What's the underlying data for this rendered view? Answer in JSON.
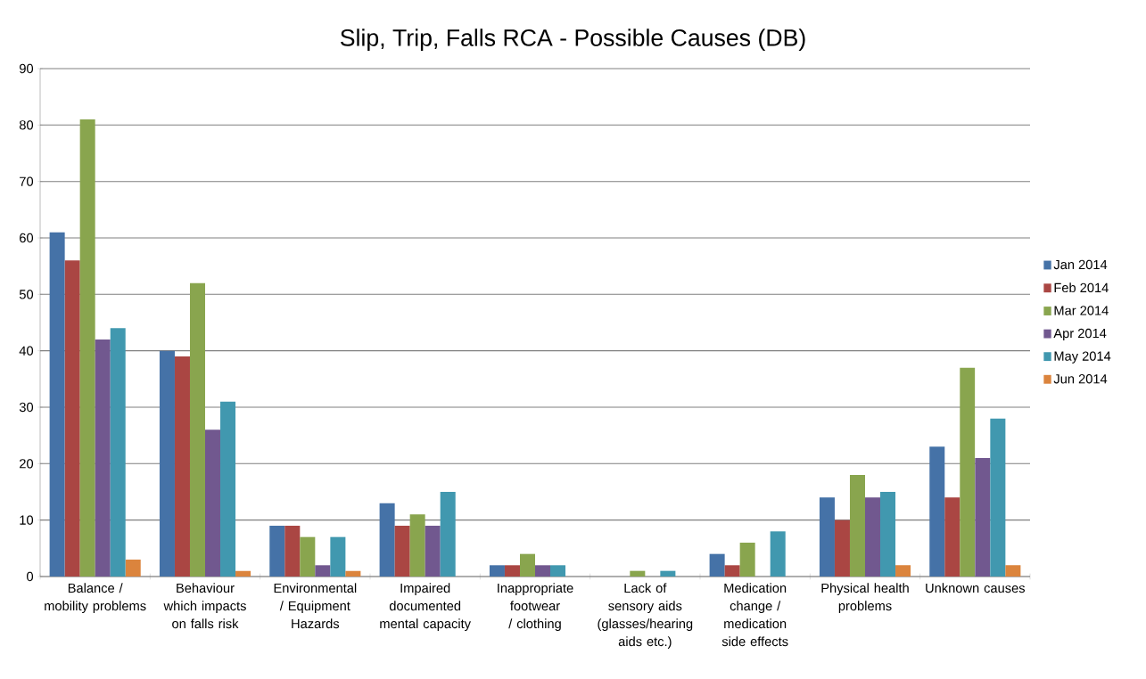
{
  "chart_data": {
    "type": "bar",
    "title": "Slip, Trip, Falls RCA - Possible Causes (DB)",
    "categories": [
      "Balance / mobility problems",
      "Behaviour which impacts on falls risk",
      "Environmental / Equipment Hazards",
      "Impaired documented mental capacity",
      "Inappropriate footwear / clothing",
      "Lack of sensory aids (glasses/hearing aids etc.)",
      "Medication change / medication side effects",
      "Physical health problems",
      "Unknown causes"
    ],
    "series": [
      {
        "name": "Jan 2014",
        "color": "#4572a7",
        "values": [
          61,
          40,
          9,
          13,
          2,
          0,
          4,
          14,
          23
        ]
      },
      {
        "name": "Feb 2014",
        "color": "#aa4643",
        "values": [
          56,
          39,
          9,
          9,
          2,
          0,
          2,
          10,
          14
        ]
      },
      {
        "name": "Mar 2014",
        "color": "#89a54e",
        "values": [
          81,
          52,
          7,
          11,
          4,
          1,
          6,
          18,
          37
        ]
      },
      {
        "name": "Apr 2014",
        "color": "#71588f",
        "values": [
          42,
          26,
          2,
          9,
          2,
          0,
          0,
          14,
          21
        ]
      },
      {
        "name": "May 2014",
        "color": "#4198af",
        "values": [
          44,
          31,
          7,
          15,
          2,
          1,
          8,
          15,
          28
        ]
      },
      {
        "name": "Jun 2014",
        "color": "#db843d",
        "values": [
          3,
          1,
          1,
          0,
          0,
          0,
          0,
          2,
          2
        ]
      }
    ],
    "ylim": [
      0,
      90
    ],
    "yticks": [
      0,
      10,
      20,
      30,
      40,
      50,
      60,
      70,
      80,
      90
    ],
    "grid": "y",
    "legend": "right"
  }
}
